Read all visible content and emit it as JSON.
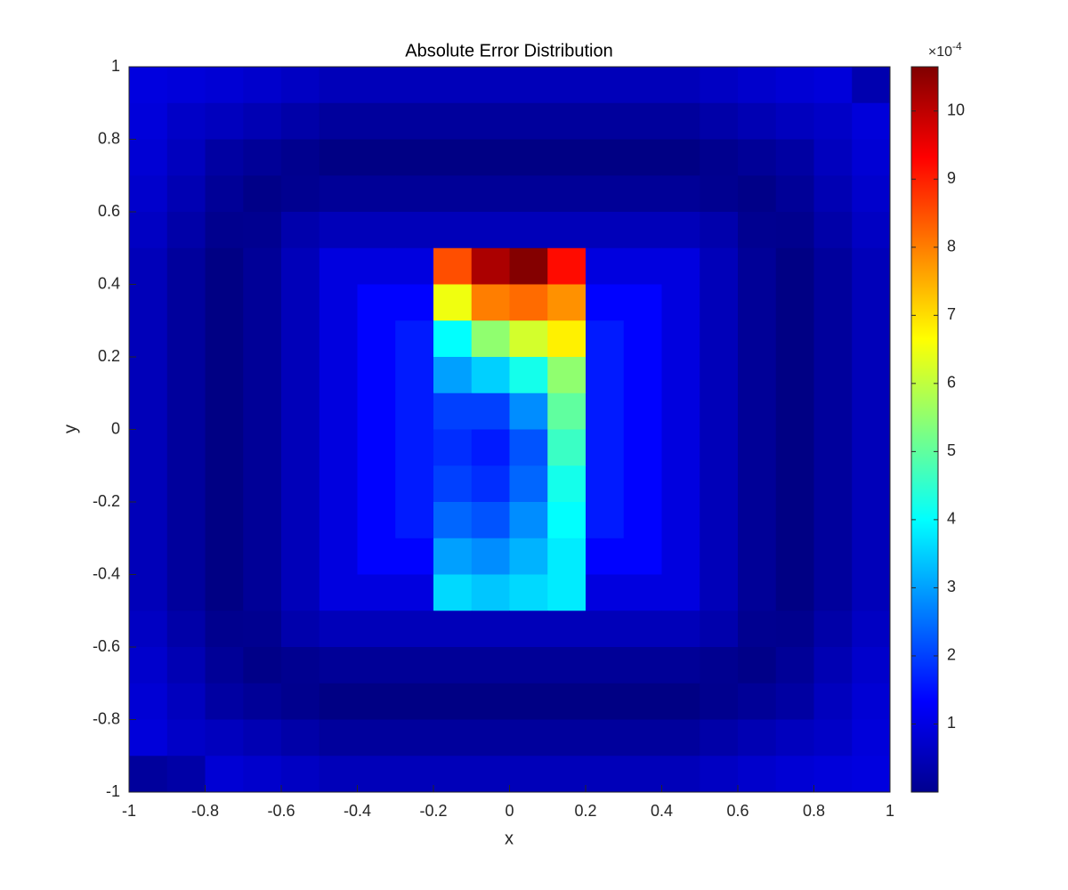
{
  "chart_data": {
    "type": "heatmap",
    "title": "Absolute Error Distribution",
    "x_label": "x",
    "y_label": "y",
    "colorbar_multiplier": "×10",
    "colorbar_exponent": "-4",
    "colormap": "jet",
    "xlim": [
      -1,
      1
    ],
    "ylim": [
      -1,
      1
    ],
    "xticks": [
      -1,
      -0.8,
      -0.6,
      -0.4,
      -0.2,
      0,
      0.2,
      0.4,
      0.6,
      0.8,
      1
    ],
    "yticks": [
      -1,
      -0.8,
      -0.6,
      -0.4,
      -0.2,
      0,
      0.2,
      0.4,
      0.6,
      0.8,
      1
    ],
    "clim": [
      0,
      10.65
    ],
    "cticks": [
      1,
      2,
      3,
      4,
      5,
      6,
      7,
      8,
      9,
      10
    ],
    "x": [
      -0.95,
      -0.85,
      -0.75,
      -0.65,
      -0.55,
      -0.45,
      -0.35,
      -0.25,
      -0.15,
      -0.05,
      0.05,
      0.15,
      0.25,
      0.35,
      0.45,
      0.55,
      0.65,
      0.75,
      0.85,
      0.95
    ],
    "y": [
      0.95,
      0.85,
      0.75,
      0.65,
      0.55,
      0.45,
      0.35,
      0.25,
      0.15,
      0.05,
      -0.05,
      -0.15,
      -0.25,
      -0.35,
      -0.45,
      -0.55,
      -0.65,
      -0.75,
      -0.85,
      -0.95
    ],
    "z": [
      [
        1.0,
        0.94,
        0.88,
        0.8,
        0.7,
        0.6,
        0.6,
        0.6,
        0.6,
        0.6,
        0.6,
        0.6,
        0.6,
        0.6,
        0.6,
        0.7,
        0.8,
        0.88,
        0.94,
        0.5
      ],
      [
        0.94,
        0.75,
        0.65,
        0.54,
        0.42,
        0.3,
        0.3,
        0.3,
        0.3,
        0.3,
        0.3,
        0.3,
        0.3,
        0.3,
        0.3,
        0.42,
        0.54,
        0.65,
        0.75,
        0.94
      ],
      [
        0.88,
        0.65,
        0.36,
        0.25,
        0.15,
        0.05,
        0.05,
        0.05,
        0.05,
        0.05,
        0.05,
        0.05,
        0.05,
        0.05,
        0.05,
        0.15,
        0.25,
        0.36,
        0.65,
        0.88
      ],
      [
        0.8,
        0.54,
        0.25,
        0.09,
        0.17,
        0.25,
        0.25,
        0.25,
        0.25,
        0.25,
        0.25,
        0.25,
        0.25,
        0.25,
        0.25,
        0.17,
        0.09,
        0.25,
        0.54,
        0.8
      ],
      [
        0.7,
        0.42,
        0.15,
        0.17,
        0.46,
        0.6,
        0.6,
        0.6,
        0.6,
        0.6,
        0.6,
        0.6,
        0.6,
        0.6,
        0.6,
        0.46,
        0.17,
        0.15,
        0.42,
        0.7
      ],
      [
        0.6,
        0.3,
        0.05,
        0.25,
        0.6,
        1.0,
        1.0,
        1.0,
        8.5,
        10.2,
        10.6,
        9.2,
        1.0,
        1.0,
        1.0,
        0.6,
        0.25,
        0.05,
        0.3,
        0.6
      ],
      [
        0.6,
        0.3,
        0.05,
        0.25,
        0.6,
        1.0,
        1.35,
        1.35,
        6.5,
        8.0,
        8.2,
        7.8,
        1.35,
        1.35,
        1.0,
        0.6,
        0.25,
        0.05,
        0.3,
        0.6
      ],
      [
        0.6,
        0.3,
        0.05,
        0.25,
        0.6,
        1.0,
        1.35,
        1.6,
        4.0,
        5.5,
        6.2,
        6.8,
        1.6,
        1.35,
        1.0,
        0.6,
        0.25,
        0.05,
        0.3,
        0.6
      ],
      [
        0.6,
        0.3,
        0.05,
        0.25,
        0.6,
        1.0,
        1.35,
        1.6,
        3.0,
        3.5,
        4.2,
        5.5,
        1.6,
        1.35,
        1.0,
        0.6,
        0.25,
        0.05,
        0.3,
        0.6
      ],
      [
        0.6,
        0.3,
        0.05,
        0.25,
        0.6,
        1.0,
        1.35,
        1.6,
        2.0,
        2.0,
        2.8,
        5.0,
        1.6,
        1.35,
        1.0,
        0.6,
        0.25,
        0.05,
        0.3,
        0.6
      ],
      [
        0.6,
        0.3,
        0.05,
        0.25,
        0.6,
        1.0,
        1.35,
        1.6,
        1.8,
        1.6,
        2.2,
        4.6,
        1.6,
        1.35,
        1.0,
        0.6,
        0.25,
        0.05,
        0.3,
        0.6
      ],
      [
        0.6,
        0.3,
        0.05,
        0.25,
        0.6,
        1.0,
        1.35,
        1.6,
        2.0,
        1.8,
        2.4,
        4.2,
        1.6,
        1.35,
        1.0,
        0.6,
        0.25,
        0.05,
        0.3,
        0.6
      ],
      [
        0.6,
        0.3,
        0.05,
        0.25,
        0.6,
        1.0,
        1.35,
        1.6,
        2.4,
        2.2,
        2.8,
        4.0,
        1.6,
        1.35,
        1.0,
        0.6,
        0.25,
        0.05,
        0.3,
        0.6
      ],
      [
        0.6,
        0.3,
        0.05,
        0.25,
        0.6,
        1.0,
        1.35,
        1.35,
        3.0,
        2.8,
        3.2,
        3.8,
        1.35,
        1.35,
        1.0,
        0.6,
        0.25,
        0.05,
        0.3,
        0.6
      ],
      [
        0.6,
        0.3,
        0.05,
        0.25,
        0.6,
        1.0,
        1.0,
        1.0,
        3.6,
        3.4,
        3.6,
        3.8,
        1.0,
        1.0,
        1.0,
        0.6,
        0.25,
        0.05,
        0.3,
        0.6
      ],
      [
        0.7,
        0.42,
        0.15,
        0.17,
        0.46,
        0.6,
        0.6,
        0.6,
        0.6,
        0.6,
        0.6,
        0.6,
        0.6,
        0.6,
        0.6,
        0.46,
        0.17,
        0.15,
        0.42,
        0.7
      ],
      [
        0.8,
        0.54,
        0.25,
        0.09,
        0.17,
        0.25,
        0.25,
        0.25,
        0.25,
        0.25,
        0.25,
        0.25,
        0.25,
        0.25,
        0.25,
        0.17,
        0.09,
        0.25,
        0.54,
        0.8
      ],
      [
        0.88,
        0.65,
        0.36,
        0.25,
        0.15,
        0.05,
        0.05,
        0.05,
        0.05,
        0.05,
        0.05,
        0.05,
        0.05,
        0.05,
        0.05,
        0.15,
        0.25,
        0.36,
        0.65,
        0.88
      ],
      [
        0.94,
        0.75,
        0.65,
        0.54,
        0.42,
        0.3,
        0.3,
        0.3,
        0.3,
        0.3,
        0.3,
        0.3,
        0.3,
        0.3,
        0.3,
        0.42,
        0.54,
        0.65,
        0.75,
        0.94
      ],
      [
        0.3,
        0.4,
        0.88,
        0.8,
        0.7,
        0.6,
        0.6,
        0.6,
        0.6,
        0.6,
        0.6,
        0.6,
        0.6,
        0.6,
        0.6,
        0.7,
        0.8,
        0.88,
        0.94,
        1.0
      ]
    ]
  }
}
